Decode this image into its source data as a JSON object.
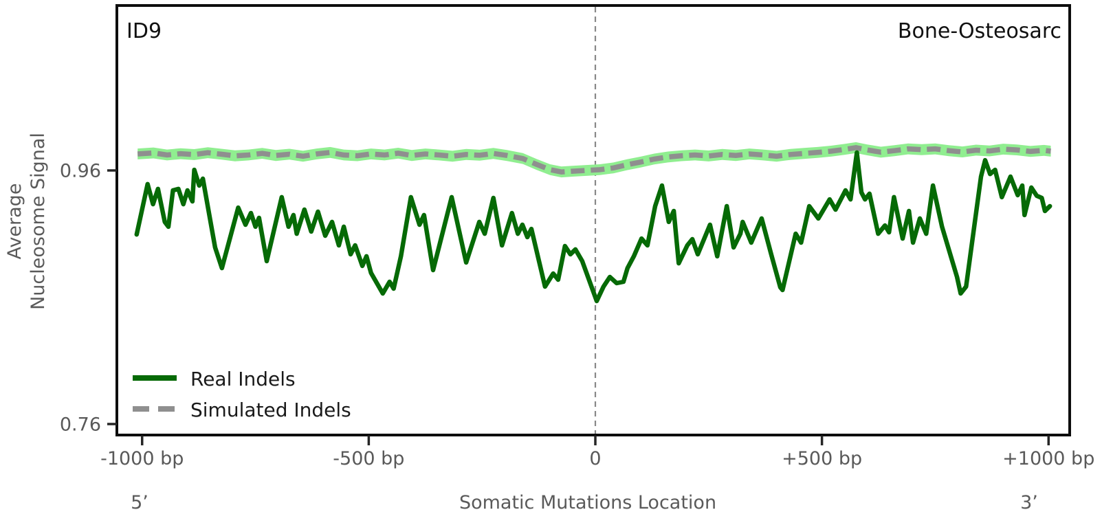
{
  "chart_data": {
    "type": "line",
    "title_left": "ID9",
    "title_right": "Bone-Osteosarc",
    "xlabel": "Somatic Mutations Location",
    "ylabel": [
      "Average",
      "Nucleosome Signal"
    ],
    "end_labels": {
      "left": "5’",
      "right": "3’"
    },
    "x_ticks": [
      {
        "bp": -1000,
        "label": "-1000 bp"
      },
      {
        "bp": -500,
        "label": "-500 bp"
      },
      {
        "bp": 0,
        "label": "0"
      },
      {
        "bp": 500,
        "label": "+500 bp"
      },
      {
        "bp": 1000,
        "label": "+1000 bp"
      }
    ],
    "y_ticks": [
      {
        "value": 0.96,
        "label": "0.96"
      },
      {
        "value": 0.76,
        "label": "0.76"
      }
    ],
    "xlim": [
      -1000,
      1000
    ],
    "grid": false,
    "legend_position": "lower left",
    "vline_bp": 0,
    "colors": {
      "real_line": "#066a06",
      "simulated_line": "#8f8f8f",
      "simulated_band": "#90ee90",
      "vline": "#888888",
      "spine": "#0d0d0d",
      "tick_text": "#595959"
    },
    "series": [
      {
        "name": "Real Indels",
        "color": "#066a06",
        "line_style": "solid",
        "points": [
          [
            -1012,
            0.9095
          ],
          [
            -988,
            0.9492
          ],
          [
            -976,
            0.9334
          ],
          [
            -965,
            0.9454
          ],
          [
            -950,
            0.9194
          ],
          [
            -942,
            0.9156
          ],
          [
            -932,
            0.9443
          ],
          [
            -920,
            0.9454
          ],
          [
            -909,
            0.9334
          ],
          [
            -900,
            0.9443
          ],
          [
            -889,
            0.9356
          ],
          [
            -885,
            0.9605
          ],
          [
            -874,
            0.9481
          ],
          [
            -866,
            0.9535
          ],
          [
            -848,
            0.9172
          ],
          [
            -839,
            0.8993
          ],
          [
            -824,
            0.883
          ],
          [
            -788,
            0.9307
          ],
          [
            -772,
            0.9172
          ],
          [
            -760,
            0.9264
          ],
          [
            -750,
            0.9156
          ],
          [
            -742,
            0.9226
          ],
          [
            -725,
            0.8885
          ],
          [
            -692,
            0.9389
          ],
          [
            -677,
            0.9156
          ],
          [
            -666,
            0.9248
          ],
          [
            -659,
            0.9101
          ],
          [
            -642,
            0.9291
          ],
          [
            -627,
            0.9118
          ],
          [
            -612,
            0.9275
          ],
          [
            -596,
            0.9085
          ],
          [
            -581,
            0.9194
          ],
          [
            -566,
            0.9009
          ],
          [
            -555,
            0.9156
          ],
          [
            -540,
            0.8939
          ],
          [
            -530,
            0.9009
          ],
          [
            -514,
            0.8847
          ],
          [
            -505,
            0.8923
          ],
          [
            -495,
            0.8792
          ],
          [
            -469,
            0.863
          ],
          [
            -454,
            0.8722
          ],
          [
            -445,
            0.8668
          ],
          [
            -429,
            0.8923
          ],
          [
            -407,
            0.9389
          ],
          [
            -388,
            0.9172
          ],
          [
            -378,
            0.9248
          ],
          [
            -358,
            0.8814
          ],
          [
            -317,
            0.9389
          ],
          [
            -285,
            0.8874
          ],
          [
            -256,
            0.9194
          ],
          [
            -244,
            0.9101
          ],
          [
            -225,
            0.9383
          ],
          [
            -206,
            0.9009
          ],
          [
            -184,
            0.9264
          ],
          [
            -171,
            0.9101
          ],
          [
            -161,
            0.9172
          ],
          [
            -150,
            0.9074
          ],
          [
            -141,
            0.9139
          ],
          [
            -111,
            0.8684
          ],
          [
            -93,
            0.8787
          ],
          [
            -82,
            0.8738
          ],
          [
            -67,
            0.9004
          ],
          [
            -55,
            0.8939
          ],
          [
            -44,
            0.8977
          ],
          [
            -29,
            0.8885
          ],
          [
            3,
            0.857
          ],
          [
            18,
            0.8684
          ],
          [
            32,
            0.876
          ],
          [
            47,
            0.8711
          ],
          [
            62,
            0.8722
          ],
          [
            71,
            0.883
          ],
          [
            85,
            0.8923
          ],
          [
            102,
            0.9063
          ],
          [
            115,
            0.9009
          ],
          [
            132,
            0.9318
          ],
          [
            147,
            0.9481
          ],
          [
            162,
            0.9194
          ],
          [
            173,
            0.928
          ],
          [
            184,
            0.8868
          ],
          [
            203,
            0.9009
          ],
          [
            214,
            0.9058
          ],
          [
            226,
            0.8939
          ],
          [
            253,
            0.9172
          ],
          [
            269,
            0.8923
          ],
          [
            290,
            0.9318
          ],
          [
            305,
            0.8993
          ],
          [
            320,
            0.9101
          ],
          [
            325,
            0.9194
          ],
          [
            344,
            0.9031
          ],
          [
            367,
            0.9221
          ],
          [
            388,
            0.8939
          ],
          [
            408,
            0.8679
          ],
          [
            413,
            0.8657
          ],
          [
            442,
            0.9101
          ],
          [
            454,
            0.9031
          ],
          [
            472,
            0.9318
          ],
          [
            492,
            0.9221
          ],
          [
            517,
            0.9372
          ],
          [
            530,
            0.9291
          ],
          [
            552,
            0.9443
          ],
          [
            563,
            0.9372
          ],
          [
            577,
            0.9741
          ],
          [
            587,
            0.9427
          ],
          [
            595,
            0.9372
          ],
          [
            605,
            0.9416
          ],
          [
            624,
            0.9101
          ],
          [
            639,
            0.9166
          ],
          [
            648,
            0.9112
          ],
          [
            659,
            0.9389
          ],
          [
            678,
            0.9063
          ],
          [
            692,
            0.928
          ],
          [
            701,
            0.9031
          ],
          [
            716,
            0.9221
          ],
          [
            730,
            0.9101
          ],
          [
            745,
            0.9481
          ],
          [
            765,
            0.9156
          ],
          [
            798,
            0.876
          ],
          [
            806,
            0.863
          ],
          [
            818,
            0.8684
          ],
          [
            836,
            0.9156
          ],
          [
            851,
            0.9551
          ],
          [
            860,
            0.9681
          ],
          [
            871,
            0.9572
          ],
          [
            882,
            0.9605
          ],
          [
            897,
            0.9389
          ],
          [
            916,
            0.9551
          ],
          [
            932,
            0.9405
          ],
          [
            942,
            0.9481
          ],
          [
            947,
            0.9248
          ],
          [
            962,
            0.9465
          ],
          [
            974,
            0.94
          ],
          [
            985,
            0.9383
          ],
          [
            992,
            0.928
          ],
          [
            1003,
            0.9318
          ]
        ]
      },
      {
        "name": "Simulated Indels",
        "color": "#8f8f8f",
        "line_style": "dashed",
        "band_color": "#90ee90",
        "band_halfwidth": 0.0043,
        "points": [
          [
            -1010,
            0.973
          ],
          [
            -975,
            0.9738
          ],
          [
            -945,
            0.9722
          ],
          [
            -915,
            0.9732
          ],
          [
            -885,
            0.9725
          ],
          [
            -855,
            0.974
          ],
          [
            -825,
            0.9728
          ],
          [
            -795,
            0.9715
          ],
          [
            -765,
            0.9722
          ],
          [
            -735,
            0.9735
          ],
          [
            -705,
            0.9718
          ],
          [
            -675,
            0.9728
          ],
          [
            -645,
            0.9712
          ],
          [
            -615,
            0.973
          ],
          [
            -585,
            0.9742
          ],
          [
            -555,
            0.9722
          ],
          [
            -525,
            0.9716
          ],
          [
            -495,
            0.973
          ],
          [
            -465,
            0.9722
          ],
          [
            -435,
            0.9736
          ],
          [
            -405,
            0.9718
          ],
          [
            -375,
            0.973
          ],
          [
            -345,
            0.9722
          ],
          [
            -315,
            0.9712
          ],
          [
            -285,
            0.9726
          ],
          [
            -255,
            0.972
          ],
          [
            -225,
            0.9734
          ],
          [
            -195,
            0.9718
          ],
          [
            -160,
            0.9694
          ],
          [
            -130,
            0.9648
          ],
          [
            -100,
            0.9606
          ],
          [
            -75,
            0.9588
          ],
          [
            -50,
            0.9594
          ],
          [
            -20,
            0.96
          ],
          [
            10,
            0.9606
          ],
          [
            40,
            0.962
          ],
          [
            70,
            0.9645
          ],
          [
            100,
            0.9666
          ],
          [
            130,
            0.969
          ],
          [
            160,
            0.9706
          ],
          [
            190,
            0.9716
          ],
          [
            220,
            0.9722
          ],
          [
            250,
            0.9714
          ],
          [
            280,
            0.9726
          ],
          [
            310,
            0.9718
          ],
          [
            340,
            0.973
          ],
          [
            370,
            0.9722
          ],
          [
            400,
            0.9712
          ],
          [
            430,
            0.9726
          ],
          [
            460,
            0.9734
          ],
          [
            490,
            0.9742
          ],
          [
            520,
            0.9752
          ],
          [
            550,
            0.9766
          ],
          [
            575,
            0.978
          ],
          [
            600,
            0.9762
          ],
          [
            630,
            0.9744
          ],
          [
            660,
            0.9756
          ],
          [
            690,
            0.977
          ],
          [
            720,
            0.9764
          ],
          [
            750,
            0.977
          ],
          [
            780,
            0.9756
          ],
          [
            810,
            0.9746
          ],
          [
            840,
            0.976
          ],
          [
            870,
            0.9754
          ],
          [
            900,
            0.9768
          ],
          [
            930,
            0.9762
          ],
          [
            960,
            0.975
          ],
          [
            990,
            0.9758
          ],
          [
            1005,
            0.9752
          ]
        ]
      }
    ]
  }
}
